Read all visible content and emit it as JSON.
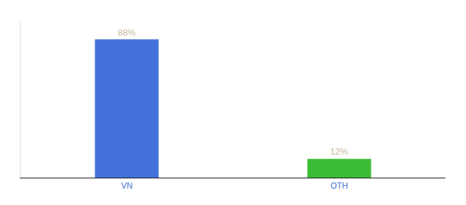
{
  "chart_data": {
    "type": "bar",
    "categories": [
      "VN",
      "OTH"
    ],
    "values": [
      88,
      12
    ],
    "value_labels": [
      "88%",
      "12%"
    ],
    "colors": [
      "#4472db",
      "#3cbb35"
    ],
    "ylim": [
      0,
      100
    ],
    "grid": false,
    "data_labels": true,
    "tick_labels": "x"
  }
}
